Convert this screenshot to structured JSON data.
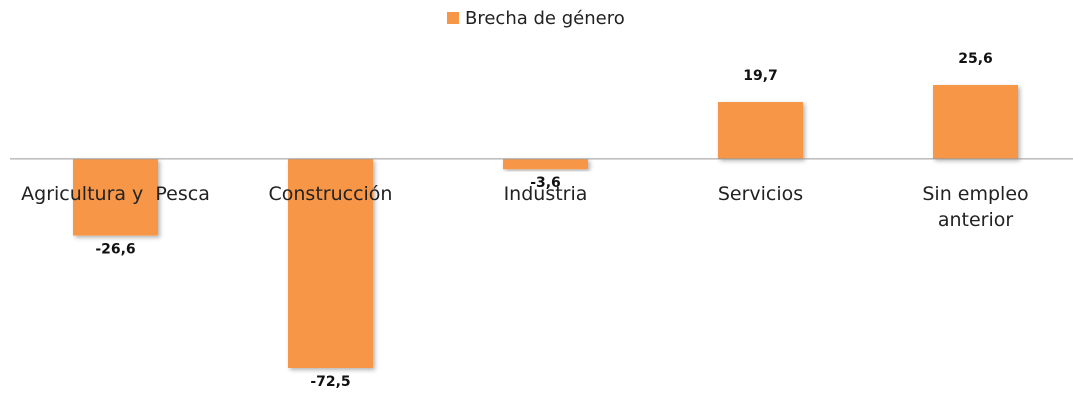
{
  "chart_data": {
    "type": "bar",
    "series": [
      {
        "name": "Brecha de género",
        "color": "#f79646",
        "values": [
          -26.6,
          -72.5,
          -3.6,
          19.7,
          25.6
        ],
        "value_labels": [
          "-26,6",
          "-72,5",
          "-3,6",
          "19,7",
          "25,6"
        ]
      }
    ],
    "categories": [
      "Agricultura y  Pesca",
      "Construcción",
      "Industria",
      "Servicios",
      "Sin empleo anterior"
    ],
    "legend": "top"
  }
}
